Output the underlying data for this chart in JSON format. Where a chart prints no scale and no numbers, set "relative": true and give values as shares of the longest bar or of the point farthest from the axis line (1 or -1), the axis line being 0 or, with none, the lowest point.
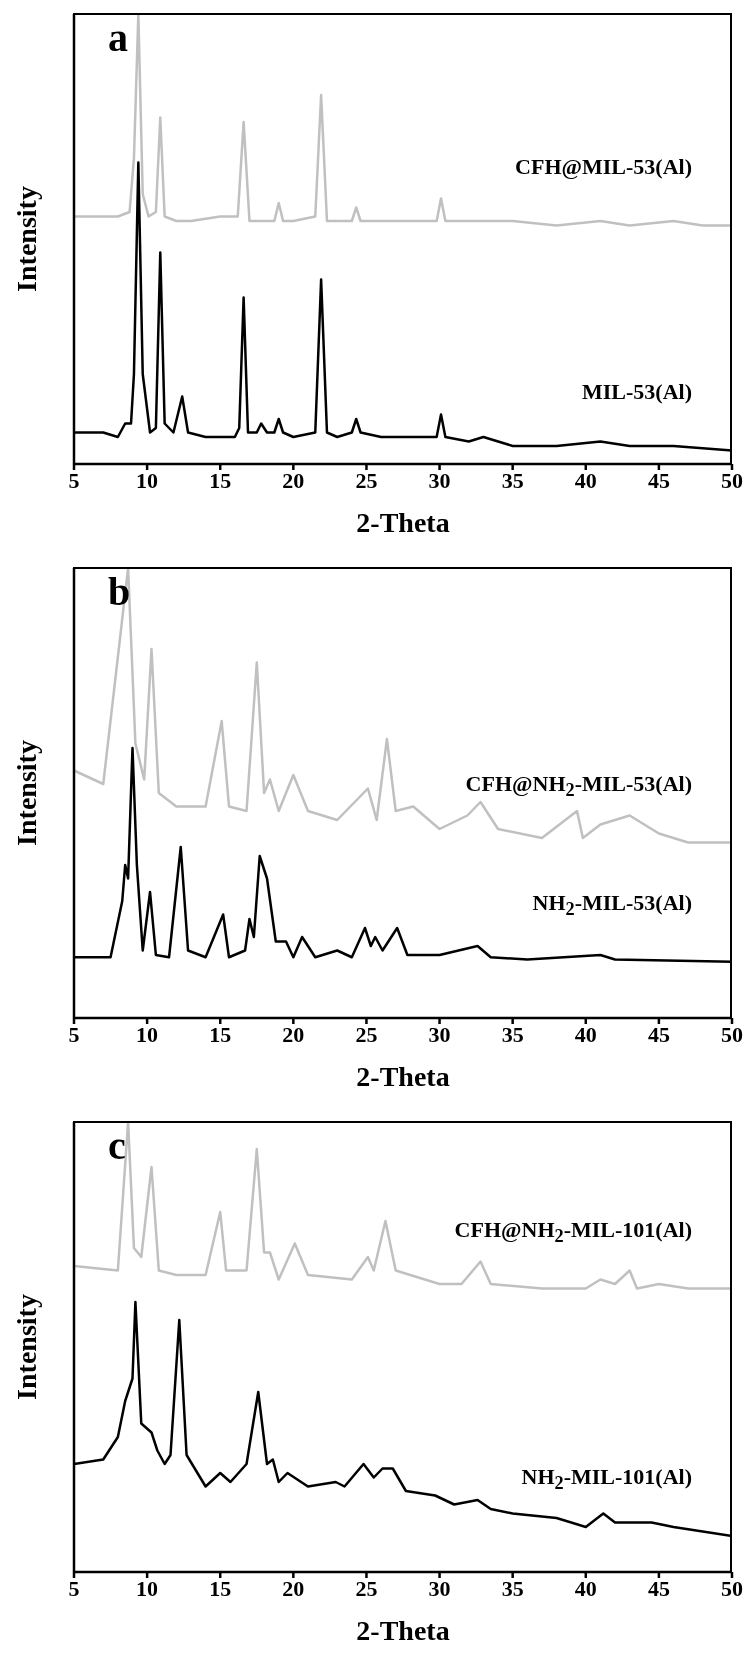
{
  "chart_data": [
    {
      "type": "line",
      "title": "a",
      "xlabel": "2-Theta",
      "ylabel": "Intensity",
      "relative": true,
      "xlim": [
        5,
        50
      ],
      "xticks": [
        5,
        10,
        15,
        20,
        25,
        30,
        35,
        40,
        45,
        50
      ],
      "marker": "none",
      "line_style": "solid",
      "series": [
        {
          "name": "CFH@MIL-53(Al)",
          "color": "#c0c0c0",
          "x": [
            5,
            6,
            7,
            8,
            8.8,
            9.1,
            9.4,
            9.7,
            10.1,
            10.6,
            10.9,
            11.2,
            12,
            13,
            15,
            16.2,
            16.6,
            17,
            18,
            18.7,
            19,
            19.3,
            20,
            21.5,
            21.9,
            22.3,
            23,
            24,
            24.3,
            24.6,
            26,
            28,
            29.8,
            30.1,
            30.4,
            32,
            33,
            35,
            38,
            41,
            43,
            46,
            48,
            50
          ],
          "values": [
            0.55,
            0.55,
            0.55,
            0.55,
            0.56,
            0.68,
            1.0,
            0.6,
            0.55,
            0.56,
            0.77,
            0.55,
            0.54,
            0.54,
            0.55,
            0.55,
            0.76,
            0.54,
            0.54,
            0.54,
            0.58,
            0.54,
            0.54,
            0.55,
            0.82,
            0.54,
            0.54,
            0.54,
            0.57,
            0.54,
            0.54,
            0.54,
            0.54,
            0.59,
            0.54,
            0.54,
            0.54,
            0.54,
            0.53,
            0.54,
            0.53,
            0.54,
            0.53,
            0.53
          ]
        },
        {
          "name": "MIL-53(Al)",
          "color": "#000000",
          "x": [
            5,
            6,
            7,
            8,
            8.5,
            8.9,
            9.1,
            9.4,
            9.7,
            10.2,
            10.6,
            10.9,
            11.2,
            11.8,
            12.4,
            12.8,
            14,
            16,
            16.3,
            16.6,
            16.9,
            17.5,
            17.8,
            18.2,
            18.7,
            19.0,
            19.3,
            20,
            21.5,
            21.9,
            22.3,
            23,
            24,
            24.3,
            24.6,
            26,
            28,
            29.8,
            30.1,
            30.4,
            32,
            33,
            35,
            38,
            41,
            43,
            46,
            50
          ],
          "values": [
            0.07,
            0.07,
            0.07,
            0.06,
            0.09,
            0.09,
            0.2,
            0.67,
            0.2,
            0.07,
            0.08,
            0.47,
            0.09,
            0.07,
            0.15,
            0.07,
            0.06,
            0.06,
            0.08,
            0.37,
            0.07,
            0.07,
            0.09,
            0.07,
            0.07,
            0.1,
            0.07,
            0.06,
            0.07,
            0.41,
            0.07,
            0.06,
            0.07,
            0.1,
            0.07,
            0.06,
            0.06,
            0.06,
            0.11,
            0.06,
            0.05,
            0.06,
            0.04,
            0.04,
            0.05,
            0.04,
            0.04,
            0.03
          ]
        }
      ]
    },
    {
      "type": "line",
      "title": "b",
      "xlabel": "2-Theta",
      "ylabel": "Intensity",
      "relative": true,
      "xlim": [
        5,
        50
      ],
      "xticks": [
        5,
        10,
        15,
        20,
        25,
        30,
        35,
        40,
        45,
        50
      ],
      "marker": "none",
      "line_style": "solid",
      "series": [
        {
          "name": "CFH@NH$_{2}$-MIL-53(Al)",
          "color": "#c0c0c0",
          "x": [
            5,
            7,
            8.7,
            9.2,
            9.8,
            10.3,
            10.8,
            12,
            14,
            15.1,
            15.6,
            16.8,
            17.5,
            18,
            18.4,
            19,
            20,
            21,
            23,
            25.1,
            25.7,
            26.4,
            27,
            28.2,
            30,
            31.9,
            32.8,
            34,
            37,
            39.4,
            39.8,
            41,
            43,
            45,
            47,
            50
          ],
          "values": [
            0.55,
            0.52,
            1.0,
            0.61,
            0.53,
            0.82,
            0.5,
            0.47,
            0.47,
            0.66,
            0.47,
            0.46,
            0.79,
            0.5,
            0.53,
            0.46,
            0.54,
            0.46,
            0.44,
            0.51,
            0.44,
            0.62,
            0.46,
            0.47,
            0.42,
            0.45,
            0.48,
            0.42,
            0.4,
            0.46,
            0.4,
            0.43,
            0.45,
            0.41,
            0.39,
            0.39
          ]
        },
        {
          "name": "NH$_{2}$-MIL-53(Al)",
          "color": "#000000",
          "x": [
            5,
            7.5,
            8.3,
            8.5,
            8.7,
            9.0,
            9.3,
            9.7,
            10.2,
            10.6,
            11.5,
            12.3,
            12.8,
            14,
            15.2,
            15.6,
            16.7,
            17,
            17.3,
            17.7,
            18.2,
            18.8,
            19.5,
            20,
            20.6,
            21.5,
            23,
            24,
            24.9,
            25.3,
            25.6,
            26.1,
            27.1,
            27.8,
            30,
            32.6,
            33.5,
            36,
            41,
            42,
            50
          ],
          "values": [
            0.135,
            0.135,
            0.26,
            0.34,
            0.31,
            0.6,
            0.34,
            0.15,
            0.28,
            0.14,
            0.135,
            0.38,
            0.15,
            0.135,
            0.23,
            0.135,
            0.15,
            0.22,
            0.18,
            0.36,
            0.31,
            0.17,
            0.17,
            0.135,
            0.18,
            0.135,
            0.15,
            0.135,
            0.2,
            0.16,
            0.18,
            0.15,
            0.2,
            0.14,
            0.14,
            0.16,
            0.135,
            0.13,
            0.14,
            0.13,
            0.125
          ]
        }
      ]
    },
    {
      "type": "line",
      "title": "c",
      "xlabel": "2-Theta",
      "ylabel": "Intensity",
      "relative": true,
      "xlim": [
        5,
        50
      ],
      "xticks": [
        5,
        10,
        15,
        20,
        25,
        30,
        35,
        40,
        45,
        50
      ],
      "marker": "none",
      "line_style": "solid",
      "series": [
        {
          "name": "CFH@NH$_{2}$-MIL-101(Al)",
          "color": "#c0c0c0",
          "x": [
            5,
            8,
            8.7,
            9.1,
            9.6,
            10.3,
            10.8,
            12,
            14,
            15,
            15.4,
            16.8,
            17.5,
            18.0,
            18.4,
            19,
            20.1,
            21,
            24,
            25.1,
            25.5,
            26.3,
            27,
            30,
            31.5,
            32.8,
            33.5,
            37,
            40,
            41,
            42,
            43,
            43.5,
            45,
            47,
            50
          ],
          "values": [
            0.68,
            0.67,
            1.0,
            0.72,
            0.7,
            0.9,
            0.67,
            0.66,
            0.66,
            0.8,
            0.67,
            0.67,
            0.94,
            0.71,
            0.71,
            0.65,
            0.73,
            0.66,
            0.65,
            0.7,
            0.67,
            0.78,
            0.67,
            0.64,
            0.64,
            0.69,
            0.64,
            0.63,
            0.63,
            0.65,
            0.64,
            0.67,
            0.63,
            0.64,
            0.63,
            0.63
          ]
        },
        {
          "name": "NH$_{2}$-MIL-101(Al)",
          "color": "#000000",
          "x": [
            5,
            7,
            8,
            8.5,
            9.0,
            9.2,
            9.6,
            10.3,
            10.7,
            11.2,
            11.6,
            12.2,
            12.7,
            14,
            15,
            15.7,
            16.8,
            17.6,
            18.2,
            18.6,
            19,
            19.6,
            21,
            22.9,
            23.5,
            24.8,
            25.5,
            26.1,
            26.8,
            27.7,
            29.7,
            31,
            32.6,
            33.5,
            35,
            38,
            40,
            41.2,
            42,
            44.5,
            46,
            50
          ],
          "values": [
            0.24,
            0.25,
            0.3,
            0.38,
            0.43,
            0.6,
            0.33,
            0.31,
            0.27,
            0.24,
            0.26,
            0.56,
            0.26,
            0.19,
            0.22,
            0.2,
            0.24,
            0.4,
            0.24,
            0.25,
            0.2,
            0.22,
            0.19,
            0.2,
            0.19,
            0.24,
            0.21,
            0.23,
            0.23,
            0.18,
            0.17,
            0.15,
            0.16,
            0.14,
            0.13,
            0.12,
            0.1,
            0.13,
            0.11,
            0.11,
            0.1,
            0.08
          ]
        }
      ]
    }
  ]
}
